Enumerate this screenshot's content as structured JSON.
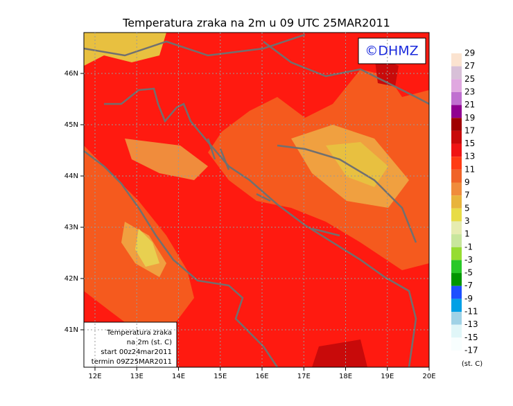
{
  "title": "Temperatura zraka na 2m u 09 UTC 25MAR2011",
  "copyright": "©DHMZ",
  "map": {
    "lon_labels": [
      "12E",
      "13E",
      "14E",
      "15E",
      "16E",
      "17E",
      "18E",
      "19E",
      "20E"
    ],
    "lat_labels": [
      "46N",
      "45N",
      "44N",
      "43N",
      "42N",
      "41N"
    ]
  },
  "colorbar": {
    "labels": [
      29,
      27,
      25,
      23,
      21,
      19,
      17,
      15,
      13,
      11,
      9,
      7,
      5,
      3,
      1,
      -1,
      -3,
      -5,
      -7,
      -9,
      -11,
      -13,
      -15,
      -17
    ],
    "colors": [
      "#fbe3d0",
      "#d8c0d8",
      "#e0a8e0",
      "#c070d0",
      "#900090",
      "#a00000",
      "#c80a0a",
      "#f01414",
      "#ff3c14",
      "#f06428",
      "#f08c3c",
      "#e8b43c",
      "#e8dc46",
      "#e6ecb0",
      "#c8e69c",
      "#96dc32",
      "#28c828",
      "#009600",
      "#1e50ff",
      "#00a0e6",
      "#a0d2e6",
      "#e0f6f8",
      "#f8fefe"
    ],
    "unit": "(st. C)"
  },
  "info_box": [
    "Temperatura zraka",
    "na 2m (st. C)",
    "start 00z24mar2011",
    "termin 09Z25MAR2011"
  ]
}
